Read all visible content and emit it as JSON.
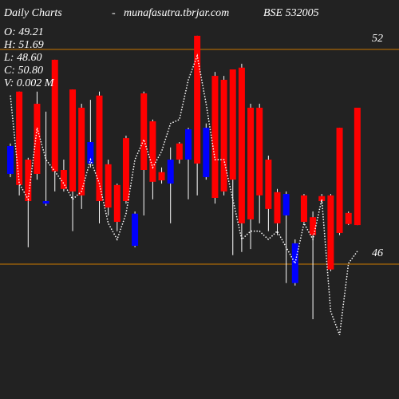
{
  "chart_data": {
    "type": "candlestick",
    "title": "Daily Charts",
    "separator": "-",
    "source": "munafasutra.tbrjar.com",
    "symbol": "BSE 532005",
    "summary": [
      "O: 49.21",
      "H: 51.69",
      "L: 48.60",
      "C: 50.80",
      "V: 0.002 M"
    ],
    "ylim": [
      42.23,
      53.38
    ],
    "yticks": [
      52,
      46
    ],
    "grid": true,
    "grid_color": "#cc7a00",
    "up_color": "#0000ff",
    "down_color": "#ff0000",
    "open": [
      48.52,
      50.82,
      48.92,
      50.48,
      47.69,
      51.71,
      48.63,
      50.88,
      50.37,
      48.81,
      50.71,
      48.79,
      48.21,
      49.52,
      46.51,
      50.77,
      49.99,
      48.57,
      48.25,
      49.37,
      48.92,
      52.38,
      48.43,
      51.26,
      51.15,
      51.44,
      51.49,
      50.37,
      50.37,
      48.92,
      48.01,
      47.36,
      45.47,
      47.92,
      47.31,
      47.9,
      47.92,
      49.81,
      47.43,
      50.37
    ],
    "high": [
      49.37,
      50.82,
      48.97,
      50.82,
      50.26,
      51.71,
      48.92,
      50.88,
      50.48,
      50.59,
      50.82,
      48.92,
      48.25,
      49.59,
      47.47,
      50.82,
      50.04,
      48.7,
      49.26,
      49.41,
      49.81,
      52.38,
      49.93,
      51.37,
      51.26,
      51.44,
      51.6,
      50.48,
      50.48,
      49.03,
      48.1,
      48.03,
      46.69,
      47.96,
      47.47,
      47.96,
      47.96,
      49.81,
      47.47,
      50.37
    ],
    "low": [
      48.43,
      47.92,
      46.47,
      48.36,
      47.63,
      48.03,
      48.03,
      46.92,
      47.54,
      48.7,
      47.14,
      47.36,
      46.92,
      47.69,
      46.47,
      47.36,
      47.81,
      48.25,
      47.14,
      48.81,
      47.81,
      47.92,
      48.36,
      47.69,
      47.92,
      46.25,
      46.34,
      46.42,
      47.14,
      46.92,
      46.81,
      45.47,
      45.4,
      47.14,
      44.46,
      47.69,
      45.8,
      46.81,
      47.09,
      47.09
    ],
    "close": [
      49.3,
      48.21,
      47.76,
      48.52,
      47.76,
      48.59,
      48.1,
      48.03,
      47.92,
      49.41,
      47.76,
      47.58,
      47.18,
      47.76,
      47.41,
      48.63,
      48.3,
      48.34,
      48.92,
      48.92,
      49.77,
      48.81,
      49.81,
      47.85,
      48.03,
      48.36,
      47.14,
      47.25,
      47.92,
      47.54,
      47.14,
      47.96,
      46.58,
      47.18,
      46.81,
      47.76,
      45.85,
      46.87,
      47.12,
      47.09
    ],
    "line": {
      "color": "#ffffff",
      "values": [
        50.71,
        48.25,
        47.81,
        49.81,
        48.92,
        48.59,
        48.25,
        47.81,
        48.03,
        48.92,
        48.25,
        47.14,
        46.69,
        47.41,
        48.92,
        49.48,
        48.7,
        49.15,
        49.93,
        50.04,
        51.15,
        51.82,
        50.48,
        48.92,
        48.92,
        47.81,
        46.69,
        46.92,
        46.92,
        46.69,
        46.92,
        46.47,
        46.02,
        47.14,
        46.69,
        47.81,
        44.68,
        44.02,
        46.02,
        46.36
      ]
    }
  }
}
